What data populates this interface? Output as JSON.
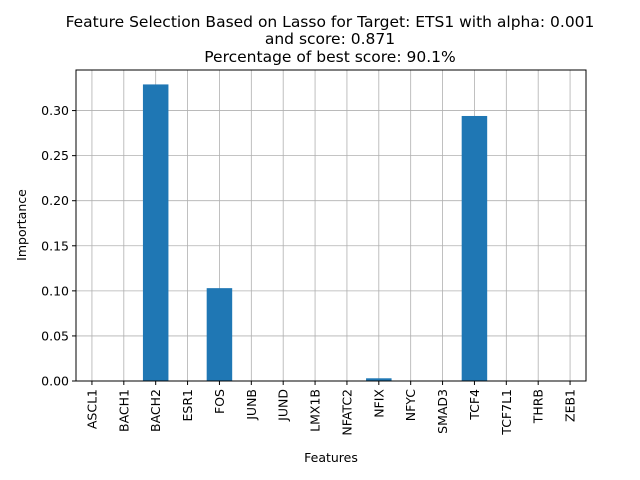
{
  "title_lines": [
    "Feature Selection Based on Lasso for Target: ETS1 with alpha: 0.001",
    "and score: 0.871",
    "Percentage of best score: 90.1%"
  ],
  "chart_data": {
    "type": "bar",
    "title": "Feature Selection Based on Lasso for Target: ETS1 with alpha: 0.001 and score: 0.871 Percentage of best score: 90.1%",
    "xlabel": "Features",
    "ylabel": "Importance",
    "categories": [
      "ASCL1",
      "BACH1",
      "BACH2",
      "ESR1",
      "FOS",
      "JUNB",
      "JUND",
      "LMX1B",
      "NFATC2",
      "NFIX",
      "NFYC",
      "SMAD3",
      "TCF4",
      "TCF7L1",
      "THRB",
      "ZEB1"
    ],
    "values": [
      0.0,
      0.0,
      0.329,
      0.0,
      0.103,
      0.0,
      0.0,
      0.0,
      0.0,
      0.003,
      0.0,
      0.0,
      0.294,
      0.0,
      0.0,
      0.0
    ],
    "ylim": [
      0,
      0.345
    ],
    "yticks": [
      0.0,
      0.05,
      0.1,
      0.15,
      0.2,
      0.25,
      0.3
    ],
    "ytick_labels": [
      "0.00",
      "0.05",
      "0.10",
      "0.15",
      "0.20",
      "0.25",
      "0.30"
    ],
    "grid": true,
    "bar_color": "#1f77b4",
    "grid_color": "#b0b0b0"
  }
}
